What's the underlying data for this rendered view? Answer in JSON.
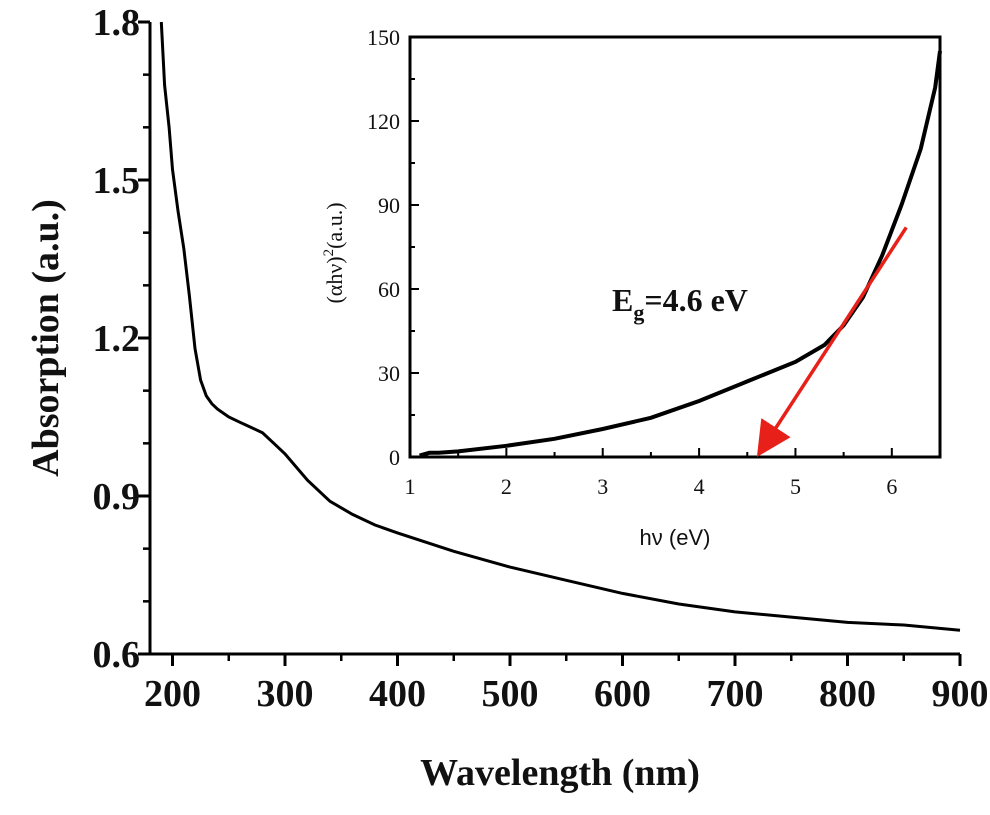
{
  "chart_data": [
    {
      "type": "line",
      "title": "",
      "xlabel": "Wavelength (nm)",
      "ylabel": "Absorption (a.u.)",
      "xlim": [
        180,
        900
      ],
      "ylim": [
        0.6,
        1.8
      ],
      "xticks": [
        "200",
        "300",
        "400",
        "500",
        "600",
        "700",
        "800",
        "900"
      ],
      "yticks": [
        "0.6",
        "0.9",
        "1.2",
        "1.5",
        "1.8"
      ],
      "grid": false,
      "series": [
        {
          "color": "#000000",
          "x": [
            190,
            193,
            197,
            200,
            205,
            210,
            215,
            220,
            225,
            230,
            235,
            240,
            250,
            260,
            270,
            280,
            290,
            300,
            320,
            340,
            360,
            380,
            400,
            450,
            500,
            550,
            600,
            650,
            700,
            750,
            800,
            850,
            900
          ],
          "y": [
            1.8,
            1.68,
            1.6,
            1.52,
            1.44,
            1.37,
            1.28,
            1.18,
            1.12,
            1.09,
            1.075,
            1.065,
            1.05,
            1.04,
            1.03,
            1.02,
            1.0,
            0.98,
            0.93,
            0.89,
            0.865,
            0.845,
            0.83,
            0.795,
            0.765,
            0.74,
            0.715,
            0.695,
            0.68,
            0.67,
            0.66,
            0.655,
            0.645
          ]
        }
      ]
    },
    {
      "type": "line",
      "title": "",
      "xlabel": "hν (eV)",
      "ylabel_base": "(αhν)",
      "ylabel_sup": "2",
      "ylabel_suffix": "(a.u.)",
      "xlim": [
        1,
        6.5
      ],
      "ylim": [
        0,
        150
      ],
      "xticks": [
        "1",
        "2",
        "3",
        "4",
        "5",
        "6"
      ],
      "yticks": [
        "0",
        "30",
        "60",
        "90",
        "120",
        "150"
      ],
      "grid": false,
      "annotation": {
        "base": "E",
        "sub": "g",
        "rest": "=4.6 eV"
      },
      "series": [
        {
          "color": "#000000",
          "x": [
            1.1,
            1.2,
            1.3,
            1.5,
            2.0,
            2.5,
            3.0,
            3.5,
            4.0,
            4.5,
            5.0,
            5.3,
            5.5,
            5.7,
            5.9,
            6.1,
            6.3,
            6.45,
            6.5
          ],
          "y": [
            0.5,
            1.5,
            1.5,
            2,
            4,
            6.5,
            10,
            14,
            20,
            27,
            34,
            40,
            47,
            57,
            72,
            90,
            110,
            132,
            145
          ]
        }
      ],
      "tangent_arrow": {
        "color": "#e8201a",
        "from": [
          6.15,
          82
        ],
        "to": [
          4.6,
          0
        ]
      }
    }
  ]
}
